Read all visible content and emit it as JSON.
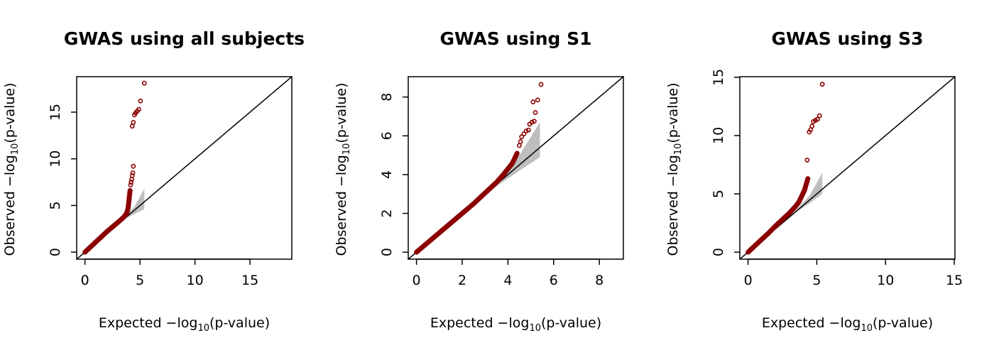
{
  "chart_data": [
    {
      "type": "scatter",
      "title": "GWAS using all subjects",
      "xlabel": "Expected −log10(p-value)",
      "ylabel": "Observed −log10(p-value)",
      "xlim": [
        -0.75,
        18.8
      ],
      "ylim": [
        -0.75,
        18.8
      ],
      "xticks": [
        0,
        5,
        10,
        15
      ],
      "yticks": [
        0,
        5,
        10,
        15
      ],
      "reference_line": "y = x",
      "band": {
        "x": [
          2.5,
          3.5,
          4.5,
          5.4
        ],
        "lower": [
          2.5,
          3.45,
          4.1,
          4.6
        ],
        "upper": [
          2.55,
          3.6,
          4.9,
          6.8
        ]
      },
      "colors": {
        "points": "#8b0000",
        "band": "#bebebe"
      },
      "bulk": [
        [
          0,
          0
        ],
        [
          0.5,
          0.55
        ],
        [
          1,
          1.1
        ],
        [
          1.5,
          1.65
        ],
        [
          2,
          2.2
        ],
        [
          2.5,
          2.7
        ],
        [
          3,
          3.2
        ],
        [
          3.3,
          3.5
        ],
        [
          3.6,
          3.85
        ],
        [
          3.8,
          4.2
        ],
        [
          3.9,
          4.6
        ],
        [
          3.95,
          5.0
        ],
        [
          4.0,
          5.5
        ],
        [
          4.05,
          6.1
        ],
        [
          4.1,
          6.6
        ]
      ],
      "points": [
        {
          "x": 4.15,
          "y": 7.2
        },
        {
          "x": 4.2,
          "y": 7.5
        },
        {
          "x": 4.25,
          "y": 7.8
        },
        {
          "x": 4.3,
          "y": 8.2
        },
        {
          "x": 4.35,
          "y": 8.5
        },
        {
          "x": 4.4,
          "y": 9.2
        },
        {
          "x": 4.3,
          "y": 13.5
        },
        {
          "x": 4.4,
          "y": 13.9
        },
        {
          "x": 4.5,
          "y": 14.7
        },
        {
          "x": 4.6,
          "y": 14.9
        },
        {
          "x": 4.75,
          "y": 15.1
        },
        {
          "x": 4.9,
          "y": 15.3
        },
        {
          "x": 5.05,
          "y": 16.2
        },
        {
          "x": 5.4,
          "y": 18.1
        }
      ]
    },
    {
      "type": "scatter",
      "title": "GWAS using S1",
      "xlabel": "Expected −log10(p-value)",
      "ylabel": "Observed −log10(p-value)",
      "xlim": [
        -0.36,
        9.05
      ],
      "ylim": [
        -0.36,
        9.05
      ],
      "xticks": [
        0,
        2,
        4,
        6,
        8
      ],
      "yticks": [
        0,
        2,
        4,
        6,
        8
      ],
      "reference_line": "y = x",
      "band": {
        "x": [
          2.5,
          3.5,
          4.5,
          5.4
        ],
        "lower": [
          2.45,
          3.4,
          4.2,
          4.9
        ],
        "upper": [
          2.6,
          3.7,
          5.0,
          6.7
        ]
      },
      "colors": {
        "points": "#8b0000",
        "band": "#bebebe"
      },
      "bulk": [
        [
          0,
          0
        ],
        [
          0.5,
          0.5
        ],
        [
          1,
          1.0
        ],
        [
          1.5,
          1.5
        ],
        [
          2,
          2.0
        ],
        [
          2.5,
          2.5
        ],
        [
          3,
          3.05
        ],
        [
          3.5,
          3.6
        ],
        [
          3.8,
          4.0
        ],
        [
          4.0,
          4.3
        ],
        [
          4.2,
          4.6
        ],
        [
          4.3,
          4.85
        ],
        [
          4.4,
          5.1
        ]
      ],
      "points": [
        {
          "x": 4.5,
          "y": 5.5
        },
        {
          "x": 4.55,
          "y": 5.7
        },
        {
          "x": 4.6,
          "y": 5.95
        },
        {
          "x": 4.7,
          "y": 6.1
        },
        {
          "x": 4.8,
          "y": 6.25
        },
        {
          "x": 4.9,
          "y": 6.3
        },
        {
          "x": 4.95,
          "y": 6.6
        },
        {
          "x": 5.05,
          "y": 6.7
        },
        {
          "x": 5.15,
          "y": 6.75
        },
        {
          "x": 5.2,
          "y": 7.2
        },
        {
          "x": 5.1,
          "y": 7.75
        },
        {
          "x": 5.3,
          "y": 7.85
        },
        {
          "x": 5.45,
          "y": 8.65
        }
      ]
    },
    {
      "type": "scatter",
      "title": "GWAS using S3",
      "xlabel": "Expected −log10(p-value)",
      "ylabel": "Observed −log10(p-value)",
      "xlim": [
        -0.6,
        15.05
      ],
      "ylim": [
        -0.6,
        15.05
      ],
      "xticks": [
        0,
        5,
        10,
        15
      ],
      "yticks": [
        0,
        5,
        10,
        15
      ],
      "reference_line": "y = x",
      "band": {
        "x": [
          2.5,
          3.5,
          4.5,
          5.4
        ],
        "lower": [
          2.5,
          3.45,
          4.2,
          5.0
        ],
        "upper": [
          2.55,
          3.6,
          4.9,
          6.8
        ]
      },
      "colors": {
        "points": "#8b0000",
        "band": "#bebebe"
      },
      "bulk": [
        [
          0,
          0
        ],
        [
          0.5,
          0.55
        ],
        [
          1,
          1.1
        ],
        [
          1.5,
          1.65
        ],
        [
          2,
          2.25
        ],
        [
          2.5,
          2.8
        ],
        [
          3,
          3.35
        ],
        [
          3.4,
          3.85
        ],
        [
          3.7,
          4.3
        ],
        [
          3.9,
          4.8
        ],
        [
          4.1,
          5.3
        ],
        [
          4.25,
          5.9
        ],
        [
          4.35,
          6.3
        ]
      ],
      "points": [
        {
          "x": 4.3,
          "y": 7.9
        },
        {
          "x": 4.45,
          "y": 10.3
        },
        {
          "x": 4.55,
          "y": 10.5
        },
        {
          "x": 4.65,
          "y": 10.8
        },
        {
          "x": 4.75,
          "y": 11.2
        },
        {
          "x": 4.9,
          "y": 11.3
        },
        {
          "x": 5.05,
          "y": 11.4
        },
        {
          "x": 5.2,
          "y": 11.7
        },
        {
          "x": 5.4,
          "y": 14.4
        }
      ]
    }
  ]
}
